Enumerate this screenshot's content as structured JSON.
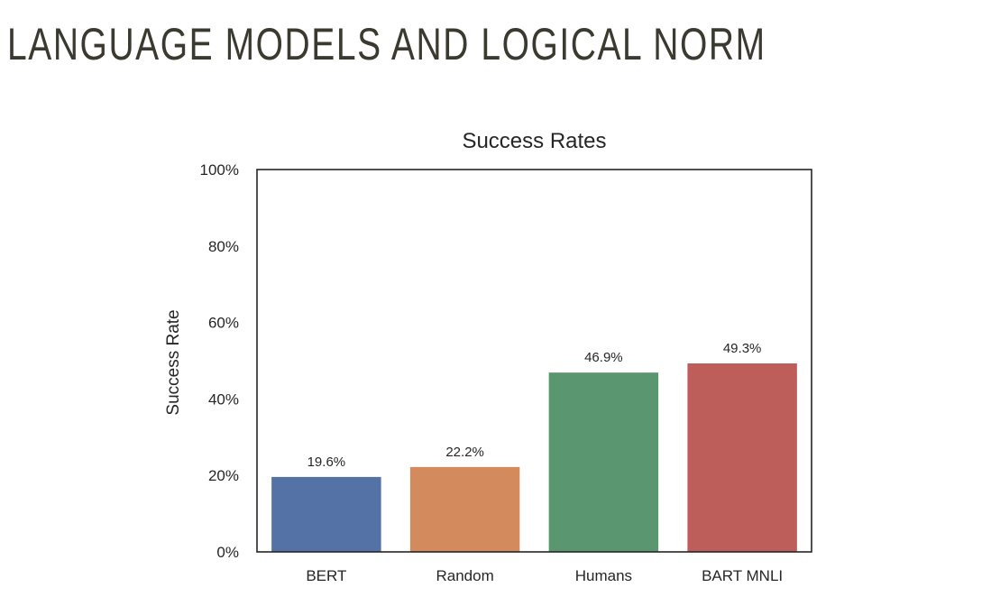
{
  "slide": {
    "title": "LANGUAGE MODELS AND LOGICAL NORM"
  },
  "chart_data": {
    "type": "bar",
    "title": "Success Rates",
    "xlabel": "",
    "ylabel": "Success Rate",
    "categories": [
      "BERT",
      "Random",
      "Humans",
      "BART MNLI"
    ],
    "values": [
      19.6,
      22.2,
      46.9,
      49.3
    ],
    "data_labels": [
      "19.6%",
      "22.2%",
      "46.9%",
      "49.3%"
    ],
    "colors": [
      "#5472a6",
      "#d38b5d",
      "#5a9670",
      "#bd5e5b"
    ],
    "ylim": [
      0,
      100
    ],
    "yticks": [
      0,
      20,
      40,
      60,
      80,
      100
    ],
    "ytick_labels": [
      "0%",
      "20%",
      "40%",
      "60%",
      "80%",
      "100%"
    ],
    "grid": false,
    "legend": "none"
  }
}
